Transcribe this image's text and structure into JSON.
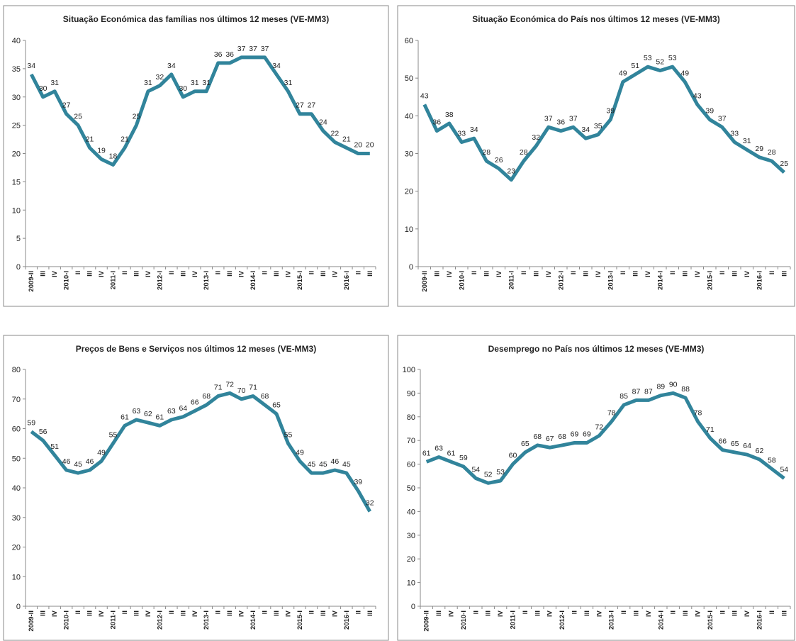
{
  "chart_data": [
    {
      "type": "line",
      "title": "Situação Económica  das famílias nos últimos 12 meses (VE-MM3)",
      "categories": [
        "2009-II",
        "III",
        "IV",
        "2010-I",
        "II",
        "III",
        "IV",
        "2011-I",
        "II",
        "III",
        "IV",
        "2012-I",
        "II",
        "III",
        "IV",
        "2013-I",
        "II",
        "III",
        "IV",
        "2014-I",
        "II",
        "III",
        "IV",
        "2015-I",
        "II",
        "III",
        "IV",
        "2016-I",
        "II",
        "III"
      ],
      "values": [
        34,
        30,
        31,
        27,
        25,
        21,
        19,
        18,
        21,
        25,
        31,
        32,
        34,
        30,
        31,
        31,
        36,
        36,
        37,
        37,
        37,
        34,
        31,
        27,
        27,
        24,
        22,
        21,
        20,
        20
      ],
      "color": "#31849b",
      "ylim": [
        0,
        40
      ],
      "yticks": [
        0,
        5,
        10,
        15,
        20,
        25,
        30,
        35,
        40
      ]
    },
    {
      "type": "line",
      "title": "Situação Económica  do  País nos últimos 12 meses (VE-MM3)",
      "categories": [
        "2009-II",
        "III",
        "IV",
        "2010-I",
        "II",
        "III",
        "IV",
        "2011-I",
        "II",
        "III",
        "IV",
        "2012-I",
        "II",
        "III",
        "IV",
        "2013-I",
        "II",
        "III",
        "IV",
        "2014-I",
        "II",
        "III",
        "IV",
        "2015-I",
        "II",
        "III",
        "IV",
        "2016-I",
        "II",
        "III"
      ],
      "values": [
        43,
        36,
        38,
        33,
        34,
        28,
        26,
        23,
        28,
        32,
        37,
        36,
        37,
        34,
        35,
        39,
        49,
        51,
        53,
        52,
        53,
        49,
        43,
        39,
        37,
        33,
        31,
        29,
        28,
        25
      ],
      "color": "#31849b",
      "ylim": [
        0,
        60
      ],
      "yticks": [
        0,
        10,
        20,
        30,
        40,
        50,
        60
      ]
    },
    {
      "type": "line",
      "title": "Preços de Bens e Serviços  nos últimos 12 meses (VE-MM3)",
      "categories": [
        "2009-II",
        "III",
        "IV",
        "2010-I",
        "II",
        "III",
        "IV",
        "2011-I",
        "II",
        "III",
        "IV",
        "2012-I",
        "II",
        "III",
        "IV",
        "2013-I",
        "II",
        "III",
        "IV",
        "2014-I",
        "II",
        "III",
        "IV",
        "2015-I",
        "II",
        "III",
        "IV",
        "2016-I",
        "II",
        "III"
      ],
      "values": [
        59,
        56,
        51,
        46,
        45,
        46,
        49,
        55,
        61,
        63,
        62,
        61,
        63,
        64,
        66,
        68,
        71,
        72,
        70,
        71,
        68,
        65,
        55,
        49,
        45,
        45,
        46,
        45,
        39,
        32
      ],
      "color": "#31849b",
      "ylim": [
        0,
        80
      ],
      "yticks": [
        0,
        10,
        20,
        30,
        40,
        50,
        60,
        70,
        80
      ]
    },
    {
      "type": "line",
      "title": "Desemprego no País nos últimos 12 meses (VE-MM3)",
      "categories": [
        "2009-II",
        "III",
        "IV",
        "2010-I",
        "II",
        "III",
        "IV",
        "2011-I",
        "II",
        "III",
        "IV",
        "2012-I",
        "II",
        "III",
        "IV",
        "2013-I",
        "II",
        "III",
        "IV",
        "2014-I",
        "II",
        "III",
        "IV",
        "2015-I",
        "II",
        "III",
        "IV",
        "2016-I",
        "II",
        "III"
      ],
      "values": [
        61,
        63,
        61,
        59,
        54,
        52,
        53,
        60,
        65,
        68,
        67,
        68,
        69,
        69,
        72,
        78,
        85,
        87,
        87,
        89,
        90,
        88,
        78,
        71,
        66,
        65,
        64,
        62,
        58,
        54
      ],
      "color": "#31849b",
      "ylim": [
        0,
        100
      ],
      "yticks": [
        0,
        10,
        20,
        30,
        40,
        50,
        60,
        70,
        80,
        90,
        100
      ]
    }
  ]
}
